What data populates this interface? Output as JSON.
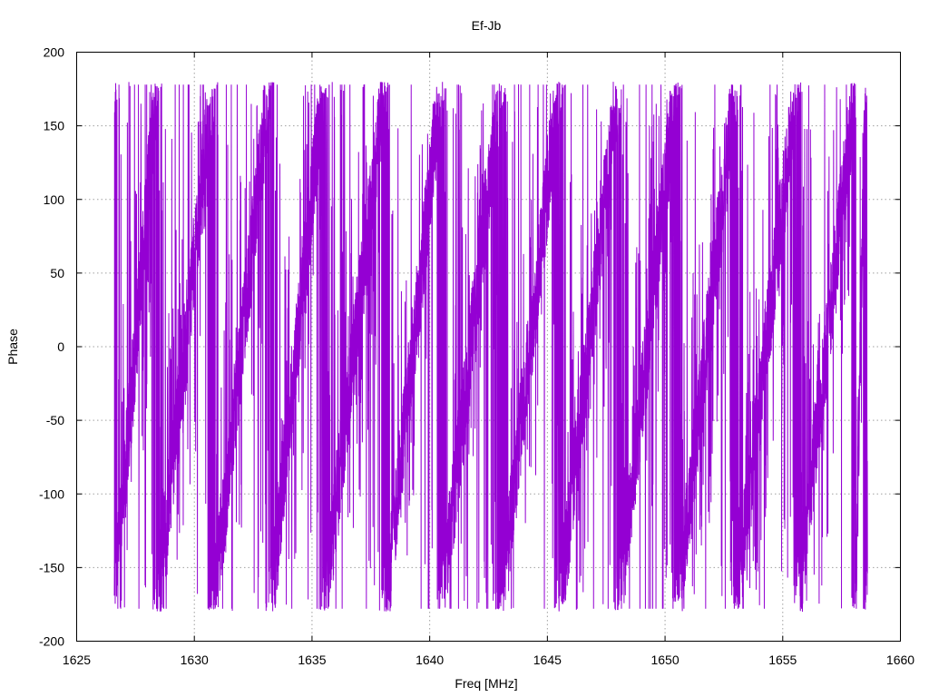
{
  "chart_data": {
    "type": "line",
    "title": "Ef-Jb",
    "xlabel": "Freq [MHz]",
    "ylabel": "Phase",
    "xlim": [
      1625,
      1660
    ],
    "ylim": [
      -200,
      200
    ],
    "xticks": [
      1625,
      1630,
      1635,
      1640,
      1645,
      1650,
      1655,
      1660
    ],
    "yticks": [
      -200,
      -150,
      -100,
      -50,
      0,
      50,
      100,
      150,
      200
    ],
    "xtick_labels": [
      "1625",
      "1630",
      "1635",
      "1640",
      "1645",
      "1650",
      "1655",
      "1660"
    ],
    "ytick_labels": [
      "-200",
      "-150",
      "-100",
      "-50",
      "0",
      "50",
      "100",
      "150",
      "200"
    ],
    "grid": true,
    "legend": "none",
    "series": [
      {
        "color": "#9400d3",
        "x_start": 1626.6,
        "x_end": 1658.6,
        "wrap_frequencies": [
          1626.6,
          1628.4,
          1630.8,
          1633.2,
          1635.5,
          1638.1,
          1640.5,
          1643.0,
          1645.5,
          1648.0,
          1650.5,
          1653.0,
          1655.6,
          1658.1,
          1658.5
        ],
        "phase_range": [
          -180,
          180
        ],
        "description_of_pattern": "phase wraps from -180 to 180 repeatedly with noise"
      }
    ]
  }
}
